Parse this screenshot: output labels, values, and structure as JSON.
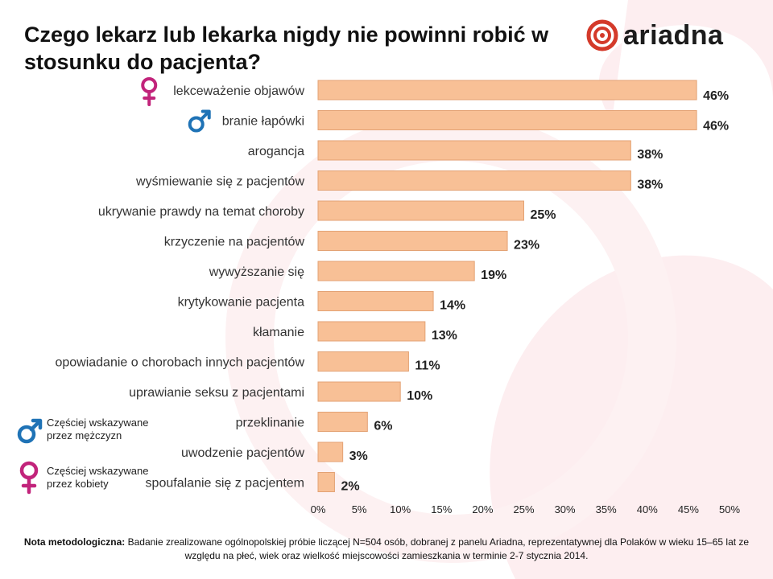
{
  "title": "Czego lekarz lub lekarka nigdy nie powinni robić w stosunku do pacjenta?",
  "logo": {
    "text": "ariadna",
    "icon": "ariadna-swirl-icon"
  },
  "legend": {
    "male": "Częściej wskazywane przez mężczyzn",
    "female": "Częściej wskazywane przez kobiety"
  },
  "note": {
    "label": "Nota metodologiczna:",
    "text": "Badanie zrealizowane ogólnopolskiej próbie liczącej N=504 osób, dobranej z panelu Ariadna, reprezentatywnej dla Polaków w wieku 15–65 lat ze względu na płeć, wiek oraz wielkość miejscowości zamieszkania w terminie 2-7 stycznia 2014."
  },
  "colors": {
    "bar": "#f8c096",
    "bar_stroke": "#e3a274",
    "female_symbol": "#c2247b",
    "male_symbol": "#1f73b6",
    "brand_red": "#d43a2a",
    "swirl": "#fbe3e6"
  },
  "chart_data": {
    "type": "bar",
    "orientation": "horizontal",
    "categories": [
      "lekceważenie objawów",
      "branie łapówki",
      "arogancja",
      "wyśmiewanie się z pacjentów",
      "ukrywanie prawdy na temat choroby",
      "krzyczenie na pacjentów",
      "wywyższanie się",
      "krytykowanie pacjenta",
      "kłamanie",
      "opowiadanie o chorobach innych pacjentów",
      "uprawianie seksu z pacjentami",
      "przeklinanie",
      "uwodzenie pacjentów",
      "spoufalanie się z pacjentem"
    ],
    "values": [
      46,
      46,
      38,
      38,
      25,
      23,
      19,
      14,
      13,
      11,
      10,
      6,
      3,
      2
    ],
    "value_labels": [
      "46%",
      "46%",
      "38%",
      "38%",
      "25%",
      "23%",
      "19%",
      "14%",
      "13%",
      "11%",
      "10%",
      "6%",
      "3%",
      "2%"
    ],
    "gender_marker": [
      "female",
      "male",
      null,
      null,
      null,
      null,
      null,
      null,
      null,
      null,
      null,
      null,
      null,
      null
    ],
    "xlim": [
      0,
      50
    ],
    "xticks": [
      "0%",
      "5%",
      "10%",
      "15%",
      "20%",
      "25%",
      "30%",
      "35%",
      "40%",
      "45%",
      "50%"
    ],
    "grid": false
  }
}
